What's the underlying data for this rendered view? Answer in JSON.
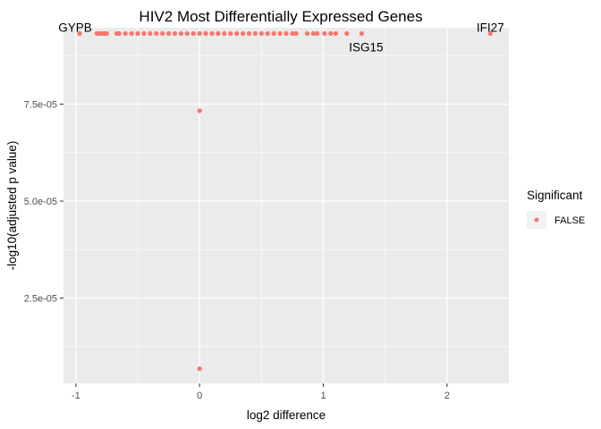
{
  "chart_data": {
    "type": "scatter",
    "title": "HIV2 Most Differentially Expressed Genes",
    "xlabel": "log2 difference",
    "ylabel": "-log10(adjusted p value)",
    "xlim": [
      -1.1,
      2.5
    ],
    "ylim": [
      3e-06,
      9.47e-05
    ],
    "x_ticks": [
      -1,
      0,
      1,
      2
    ],
    "x_tick_labels": [
      "-1",
      "0",
      "1",
      "2"
    ],
    "y_ticks": [
      2.5e-05,
      5e-05,
      7.5e-05
    ],
    "y_tick_labels": [
      "2.5e-05",
      "5.0e-05",
      "7.5e-05"
    ],
    "grid": true,
    "legend": {
      "title": "Significant",
      "entries": [
        "FALSE"
      ],
      "position": "right"
    },
    "colors": {
      "point": "#F8766D",
      "panel": "#EBEBEB",
      "grid": "#ffffff"
    },
    "series": [
      {
        "name": "FALSE",
        "points": [
          {
            "x": -0.97,
            "y": 9.32e-05
          },
          {
            "x": -0.83,
            "y": 9.32e-05
          },
          {
            "x": -0.81,
            "y": 9.32e-05
          },
          {
            "x": -0.79,
            "y": 9.32e-05
          },
          {
            "x": -0.77,
            "y": 9.32e-05
          },
          {
            "x": -0.75,
            "y": 9.32e-05
          },
          {
            "x": -0.67,
            "y": 9.32e-05
          },
          {
            "x": -0.65,
            "y": 9.32e-05
          },
          {
            "x": -0.6,
            "y": 9.32e-05
          },
          {
            "x": -0.55,
            "y": 9.32e-05
          },
          {
            "x": -0.5,
            "y": 9.32e-05
          },
          {
            "x": -0.45,
            "y": 9.32e-05
          },
          {
            "x": -0.4,
            "y": 9.32e-05
          },
          {
            "x": -0.35,
            "y": 9.32e-05
          },
          {
            "x": -0.3,
            "y": 9.32e-05
          },
          {
            "x": -0.25,
            "y": 9.32e-05
          },
          {
            "x": -0.2,
            "y": 9.32e-05
          },
          {
            "x": -0.15,
            "y": 9.32e-05
          },
          {
            "x": -0.1,
            "y": 9.32e-05
          },
          {
            "x": -0.05,
            "y": 9.32e-05
          },
          {
            "x": 0.0,
            "y": 9.32e-05
          },
          {
            "x": 0.05,
            "y": 9.32e-05
          },
          {
            "x": 0.1,
            "y": 9.32e-05
          },
          {
            "x": 0.15,
            "y": 9.32e-05
          },
          {
            "x": 0.2,
            "y": 9.32e-05
          },
          {
            "x": 0.25,
            "y": 9.32e-05
          },
          {
            "x": 0.3,
            "y": 9.32e-05
          },
          {
            "x": 0.35,
            "y": 9.32e-05
          },
          {
            "x": 0.4,
            "y": 9.32e-05
          },
          {
            "x": 0.45,
            "y": 9.32e-05
          },
          {
            "x": 0.5,
            "y": 9.32e-05
          },
          {
            "x": 0.55,
            "y": 9.32e-05
          },
          {
            "x": 0.6,
            "y": 9.32e-05
          },
          {
            "x": 0.65,
            "y": 9.32e-05
          },
          {
            "x": 0.7,
            "y": 9.32e-05
          },
          {
            "x": 0.75,
            "y": 9.32e-05
          },
          {
            "x": 0.78,
            "y": 9.32e-05
          },
          {
            "x": 0.87,
            "y": 9.32e-05
          },
          {
            "x": 0.92,
            "y": 9.32e-05
          },
          {
            "x": 0.95,
            "y": 9.32e-05
          },
          {
            "x": 1.01,
            "y": 9.32e-05
          },
          {
            "x": 1.06,
            "y": 9.32e-05
          },
          {
            "x": 1.1,
            "y": 9.32e-05
          },
          {
            "x": 1.19,
            "y": 9.32e-05
          },
          {
            "x": 1.31,
            "y": 9.32e-05
          },
          {
            "x": 2.35,
            "y": 9.32e-05
          },
          {
            "x": 0.0,
            "y": 7.33e-05
          },
          {
            "x": 0.0,
            "y": 6.8e-06
          }
        ]
      }
    ],
    "point_labels": [
      {
        "text": "GYPB",
        "x": -0.97,
        "y": 9.32e-05
      },
      {
        "text": "ISG15",
        "x": 1.31,
        "y": 9.32e-05
      },
      {
        "text": "IFI27",
        "x": 2.35,
        "y": 9.32e-05
      }
    ]
  }
}
